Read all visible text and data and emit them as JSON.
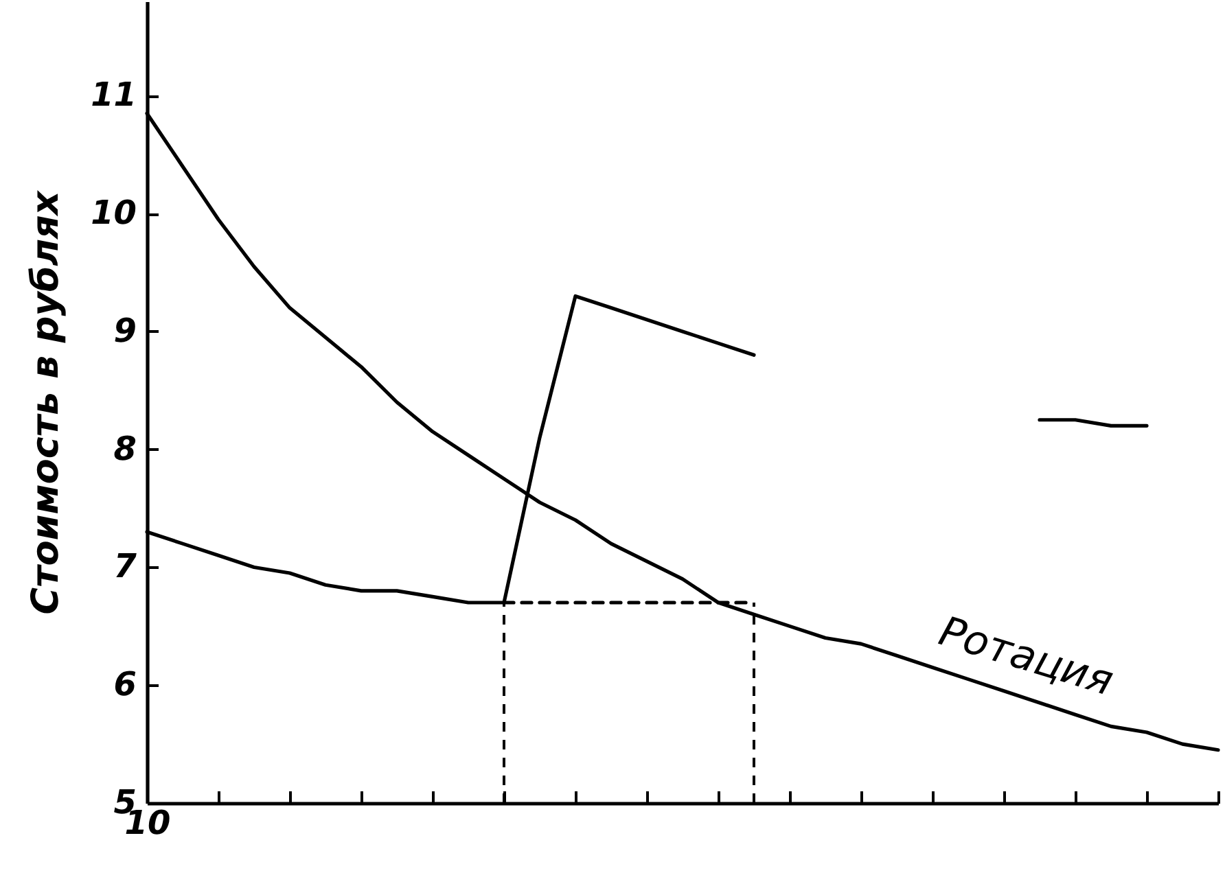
{
  "chart_data": {
    "type": "line",
    "ylabel": "Стоимость в рублях",
    "annotations": [
      "Ротация"
    ],
    "categories": [
      "10",
      null,
      null,
      null,
      null,
      null,
      null,
      null,
      null,
      null,
      null,
      null,
      null,
      null,
      null,
      null,
      null,
      null,
      null,
      null,
      null,
      null,
      null,
      null,
      null,
      null,
      null,
      null,
      null,
      null,
      null
    ],
    "ylim": [
      5,
      11.8
    ],
    "yticks": [
      5,
      6,
      7,
      8,
      9,
      10,
      11
    ],
    "grid": false,
    "marker": "none",
    "series": [
      {
        "color": "#000000",
        "line_style": "solid",
        "values": [
          10.85,
          10.4,
          9.95,
          9.55,
          9.2,
          8.95,
          8.7,
          8.4,
          8.15,
          7.95,
          7.75,
          7.55,
          7.4,
          7.2,
          7.05,
          6.9,
          6.7,
          6.6,
          6.5,
          6.4,
          6.35,
          6.25,
          6.15,
          6.05,
          5.95,
          5.85,
          5.75,
          5.65,
          5.6,
          5.5,
          5.45
        ]
      },
      {
        "color": "#000000",
        "line_style": "solid",
        "values": [
          7.3,
          7.2,
          7.1,
          7.0,
          6.95,
          6.85,
          6.8,
          6.8,
          6.75,
          6.7,
          6.7,
          8.1,
          9.3,
          9.2,
          9.1,
          9.0,
          8.9,
          8.8,
          null,
          null,
          null,
          null,
          null,
          null,
          null,
          8.25,
          8.25,
          8.2,
          8.2,
          null,
          null
        ]
      },
      {
        "color": "#000000",
        "line_style": "dashed",
        "values": [
          null,
          null,
          null,
          null,
          null,
          null,
          null,
          null,
          null,
          null,
          6.7,
          6.7,
          6.7,
          6.7,
          6.7,
          6.7,
          6.7,
          6.7,
          null,
          null,
          null,
          null,
          null,
          null,
          null,
          null,
          null,
          null,
          null,
          null,
          null
        ],
        "errors": [
          null,
          null,
          null,
          null,
          null,
          null,
          null,
          null,
          null,
          null,
          [
            5,
            6.7
          ],
          null,
          null,
          null,
          null,
          null,
          null,
          [
            5,
            6.7
          ],
          null,
          null,
          null,
          null,
          null,
          null,
          null,
          null,
          null,
          null,
          null,
          null,
          null
        ]
      }
    ]
  }
}
